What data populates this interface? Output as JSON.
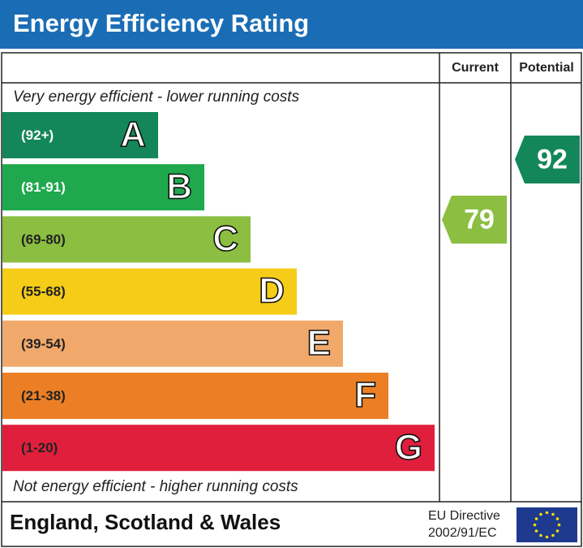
{
  "header": {
    "title": "Energy Efficiency Rating"
  },
  "columns": [
    "Current",
    "Potential"
  ],
  "top_note": "Very energy efficient - lower running costs",
  "bottom_note": "Not energy efficient - higher running costs",
  "bands": [
    {
      "range": "(92+)",
      "letter": "A",
      "color": "#14875a",
      "text_color": "#ffffff"
    },
    {
      "range": "(81-91)",
      "letter": "B",
      "color": "#1fa84d",
      "text_color": "#ffffff"
    },
    {
      "range": "(69-80)",
      "letter": "C",
      "color": "#8bbe41",
      "text_color": "#222222"
    },
    {
      "range": "(55-68)",
      "letter": "D",
      "color": "#f5cc18",
      "text_color": "#222222"
    },
    {
      "range": "(39-54)",
      "letter": "E",
      "color": "#f1a96b",
      "text_color": "#222222"
    },
    {
      "range": "(21-38)",
      "letter": "F",
      "color": "#ec7f25",
      "text_color": "#222222"
    },
    {
      "range": "(1-20)",
      "letter": "G",
      "color": "#e01f3c",
      "text_color": "#222222"
    }
  ],
  "current": {
    "value": 79,
    "color": "#8bbe41"
  },
  "potential": {
    "value": 92,
    "color": "#14875a"
  },
  "footer": {
    "region": "England, Scotland & Wales",
    "directive_line1": "EU Directive",
    "directive_line2": "2002/91/EC"
  }
}
